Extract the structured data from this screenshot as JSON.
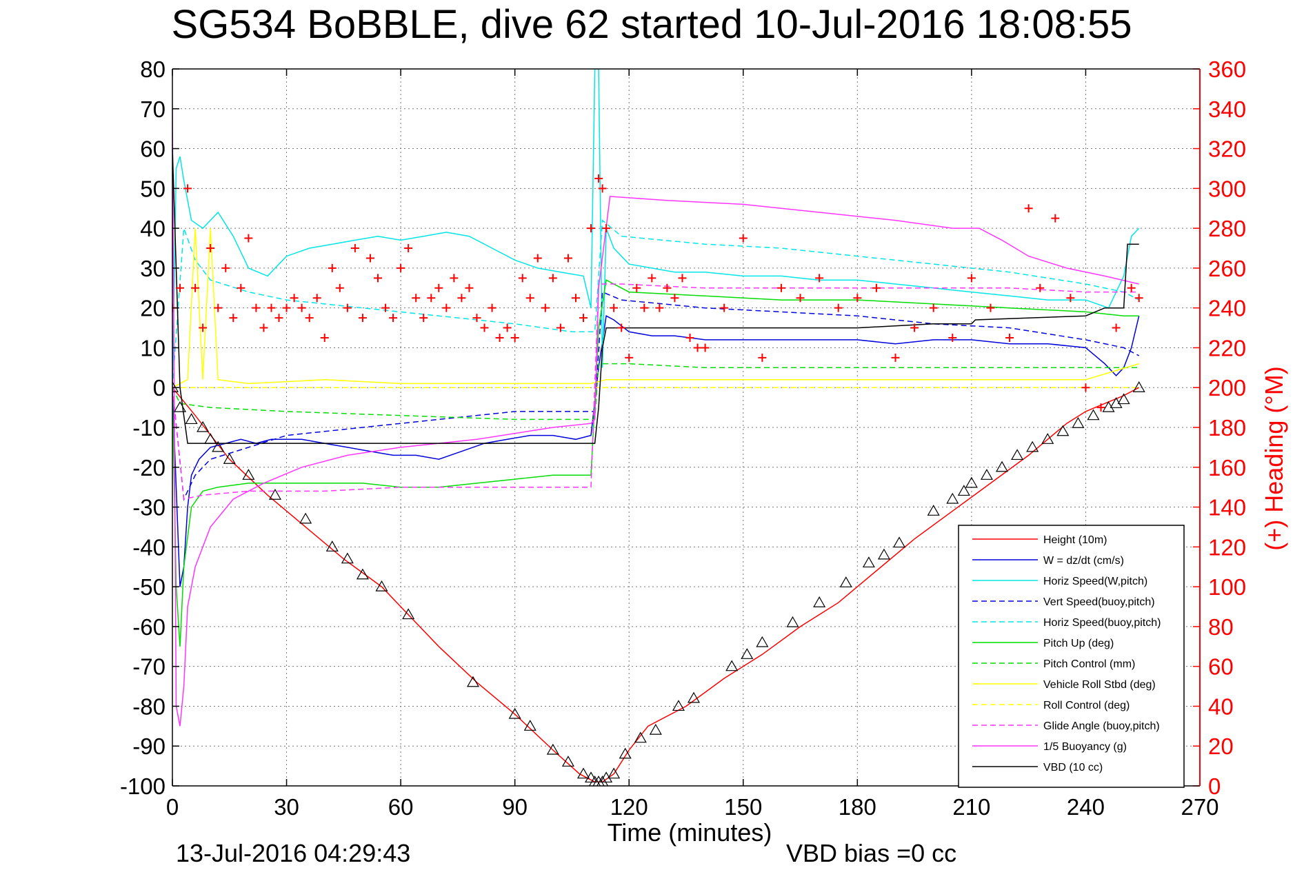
{
  "chart_data": {
    "type": "line",
    "title": "SG534 BoBBLE, dive 62 started 10-Jul-2016 18:08:55",
    "xlabel": "Time (minutes)",
    "ylabel_right": "(+) Heading (°M)",
    "footer_date": "13-Jul-2016 04:29:43",
    "footer_vbd": "VBD bias =0 cc",
    "xlim": [
      0,
      270
    ],
    "ylim": [
      -100,
      80
    ],
    "ylim_right": [
      0,
      360
    ],
    "x_ticks": [
      "0",
      "30",
      "60",
      "90",
      "120",
      "150",
      "180",
      "210",
      "240",
      "270"
    ],
    "y_ticks": [
      "80",
      "70",
      "60",
      "50",
      "40",
      "30",
      "20",
      "10",
      "0",
      "-10",
      "-20",
      "-30",
      "-40",
      "-50",
      "-60",
      "-70",
      "-80",
      "-90",
      "-100"
    ],
    "y_ticks_right": [
      "360",
      "340",
      "320",
      "300",
      "280",
      "260",
      "240",
      "220",
      "200",
      "180",
      "160",
      "140",
      "120",
      "100",
      "80",
      "60",
      "40",
      "20",
      "0"
    ],
    "grid": true,
    "legend_position": "bottom-right",
    "series": [
      {
        "name": "Height (10m)",
        "color": "#ff0000",
        "style": "solid",
        "axis": "left",
        "x": [
          0,
          6,
          15,
          25,
          35,
          45,
          55,
          62,
          70,
          80,
          90,
          100,
          107,
          111,
          113,
          116,
          120,
          125,
          135,
          145,
          155,
          165,
          175,
          185,
          195,
          205,
          215,
          225,
          235,
          240,
          245,
          250,
          254
        ],
        "values": [
          0,
          -7,
          -18,
          -27,
          -35,
          -43,
          -50,
          -57,
          -65,
          -74,
          -82,
          -91,
          -97,
          -99,
          -99,
          -97,
          -91,
          -85,
          -80,
          -73,
          -67,
          -60,
          -54,
          -46,
          -38,
          -31,
          -24,
          -17,
          -9,
          -6,
          -4,
          -2,
          0
        ]
      },
      {
        "name": "W = dz/dt (cm/s)",
        "color": "#0000dd",
        "style": "solid",
        "axis": "left",
        "x": [
          0,
          1,
          2,
          3,
          4,
          5,
          7,
          10,
          14,
          18,
          22,
          26,
          30,
          34,
          40,
          46,
          52,
          58,
          64,
          70,
          76,
          82,
          88,
          94,
          100,
          106,
          110,
          112,
          114,
          116,
          120,
          126,
          132,
          140,
          150,
          160,
          170,
          180,
          190,
          200,
          210,
          220,
          230,
          240,
          245,
          248,
          250,
          252,
          254
        ],
        "values": [
          0,
          -25,
          -50,
          -45,
          -30,
          -22,
          -18,
          -15,
          -14,
          -13,
          -14,
          -13,
          -13,
          -13,
          -14,
          -15,
          -16,
          -17,
          -17,
          -18,
          -16,
          -14,
          -13,
          -12,
          -12,
          -13,
          -12,
          5,
          18,
          17,
          14,
          13,
          13,
          12,
          12,
          12,
          12,
          12,
          11,
          12,
          12,
          11,
          11,
          10,
          6,
          3,
          5,
          10,
          18
        ]
      },
      {
        "name": "Horiz Speed(W,pitch)",
        "color": "#00e5e5",
        "style": "solid",
        "axis": "left",
        "x": [
          0,
          1,
          2,
          3,
          5,
          8,
          12,
          16,
          20,
          25,
          30,
          36,
          42,
          48,
          54,
          60,
          66,
          72,
          78,
          84,
          90,
          96,
          102,
          108,
          110,
          111,
          112,
          113,
          114,
          116,
          120,
          126,
          132,
          140,
          150,
          160,
          170,
          180,
          190,
          200,
          210,
          220,
          230,
          240,
          246,
          250,
          252,
          254
        ],
        "values": [
          0,
          55,
          58,
          52,
          42,
          40,
          44,
          38,
          30,
          28,
          33,
          35,
          36,
          37,
          38,
          37,
          38,
          39,
          38,
          35,
          32,
          30,
          29,
          28,
          20,
          80,
          80,
          5,
          40,
          35,
          31,
          30,
          29,
          29,
          28,
          28,
          27,
          27,
          26,
          25,
          24,
          23,
          22,
          22,
          20,
          28,
          38,
          40
        ]
      },
      {
        "name": "Vert Speed(buoy,pitch)",
        "color": "#0000dd",
        "style": "dashed",
        "axis": "left",
        "x": [
          0,
          3,
          6,
          10,
          20,
          30,
          50,
          70,
          90,
          105,
          111,
          113,
          118,
          140,
          160,
          180,
          200,
          220,
          240,
          250,
          254
        ],
        "values": [
          0,
          -28,
          -22,
          -18,
          -15,
          -12,
          -10,
          -8,
          -6,
          -6,
          -6,
          24,
          22,
          20,
          19,
          18,
          16,
          15,
          12,
          10,
          8
        ]
      },
      {
        "name": "Horiz Speed(buoy,pitch)",
        "color": "#00e5e5",
        "style": "dashed",
        "axis": "left",
        "x": [
          0,
          3,
          6,
          10,
          20,
          30,
          50,
          70,
          90,
          105,
          111,
          113,
          118,
          140,
          160,
          180,
          200,
          220,
          240,
          250,
          254
        ],
        "values": [
          0,
          40,
          32,
          27,
          24,
          22,
          20,
          18,
          16,
          14,
          14,
          42,
          38,
          36,
          35,
          33,
          31,
          29,
          26,
          24,
          22
        ]
      },
      {
        "name": "Pitch Up (deg)",
        "color": "#00dd00",
        "style": "solid",
        "axis": "left",
        "x": [
          0,
          1,
          2,
          3,
          5,
          8,
          12,
          20,
          30,
          40,
          50,
          60,
          70,
          80,
          90,
          100,
          110,
          112,
          114,
          120,
          140,
          160,
          180,
          200,
          220,
          240,
          250,
          254
        ],
        "values": [
          0,
          -50,
          -65,
          -45,
          -30,
          -26,
          -25,
          -24,
          -24,
          -24,
          -24,
          -25,
          -25,
          -24,
          -23,
          -22,
          -22,
          15,
          27,
          24,
          23,
          22,
          22,
          21,
          20,
          19,
          18,
          18
        ]
      },
      {
        "name": "Pitch Control (mm)",
        "color": "#00dd00",
        "style": "dashed",
        "axis": "left",
        "x": [
          0,
          2,
          10,
          30,
          60,
          90,
          110,
          111,
          112,
          120,
          140,
          160,
          180,
          200,
          220,
          240,
          250,
          254
        ],
        "values": [
          0,
          -4,
          -5,
          -6,
          -7,
          -8,
          -8,
          -8,
          6,
          6,
          5,
          5,
          5,
          5,
          5,
          5,
          5,
          5
        ]
      },
      {
        "name": "Vehicle Roll Stbd (deg)",
        "color": "#ffff00",
        "style": "solid",
        "axis": "left",
        "x": [
          0,
          4,
          6,
          8,
          10,
          12,
          20,
          40,
          60,
          80,
          100,
          110,
          114,
          120,
          140,
          160,
          180,
          200,
          220,
          240,
          254
        ],
        "values": [
          0,
          2,
          40,
          2,
          40,
          2,
          1,
          2,
          1,
          1,
          1,
          1,
          2,
          2,
          2,
          2,
          2,
          2,
          2,
          2,
          6
        ]
      },
      {
        "name": "Roll Control (deg)",
        "color": "#ffff00",
        "style": "dashed",
        "axis": "left",
        "x": [
          0,
          10,
          20,
          40,
          60,
          80,
          100,
          110,
          120,
          140,
          160,
          180,
          200,
          220,
          240,
          254
        ],
        "values": [
          0,
          0,
          0,
          0,
          0,
          0,
          0,
          0,
          0,
          0,
          0,
          0,
          0,
          0,
          0,
          0
        ]
      },
      {
        "name": "Glide Angle (buoy,pitch)",
        "color": "#ff33ff",
        "style": "dashed",
        "axis": "left",
        "x": [
          0,
          3,
          8,
          20,
          40,
          60,
          80,
          100,
          110,
          112,
          118,
          140,
          160,
          180,
          200,
          220,
          240,
          250,
          254
        ],
        "values": [
          0,
          -28,
          -27,
          -26,
          -26,
          -25,
          -25,
          -25,
          -25,
          26,
          26,
          25,
          25,
          25,
          25,
          25,
          24,
          24,
          24
        ]
      },
      {
        "name": "1/5 Buoyancy (g)",
        "color": "#ff33ff",
        "style": "solid",
        "axis": "left",
        "x": [
          0,
          1,
          2,
          3,
          4,
          6,
          10,
          16,
          24,
          34,
          46,
          60,
          80,
          100,
          110,
          111,
          112,
          115,
          130,
          150,
          170,
          190,
          205,
          212,
          218,
          225,
          235,
          245,
          254
        ],
        "values": [
          70,
          -80,
          -85,
          -75,
          -55,
          -45,
          -35,
          -28,
          -24,
          -20,
          -17,
          -15,
          -13,
          -10,
          -9,
          -8,
          25,
          48,
          47,
          46,
          44,
          42,
          40,
          40,
          37,
          33,
          30,
          28,
          26
        ]
      },
      {
        "name": "VBD (10 cc)",
        "color": "#000000",
        "style": "solid",
        "axis": "left",
        "x": [
          0,
          2,
          4,
          60,
          90,
          110,
          111,
          112,
          113,
          114,
          140,
          160,
          180,
          200,
          210,
          211,
          240,
          245,
          250,
          251,
          254
        ],
        "values": [
          60,
          0,
          -14,
          -14,
          -14,
          -14,
          -14,
          -5,
          10,
          15,
          15,
          15,
          15,
          16,
          16,
          17,
          18,
          20,
          20,
          36,
          36
        ]
      },
      {
        "name": "Heading",
        "color": "#ff0000",
        "style": "markers",
        "marker": "+",
        "axis": "right",
        "x": [
          0,
          2,
          4,
          6,
          8,
          10,
          12,
          14,
          16,
          18,
          20,
          22,
          24,
          26,
          28,
          30,
          32,
          34,
          36,
          38,
          40,
          42,
          44,
          46,
          48,
          50,
          52,
          54,
          56,
          58,
          60,
          62,
          64,
          66,
          68,
          70,
          72,
          74,
          76,
          78,
          80,
          82,
          84,
          86,
          88,
          90,
          92,
          94,
          96,
          98,
          100,
          102,
          104,
          106,
          108,
          110,
          112,
          113,
          114,
          116,
          118,
          120,
          122,
          124,
          126,
          128,
          130,
          132,
          134,
          136,
          138,
          140,
          145,
          150,
          155,
          160,
          165,
          170,
          175,
          180,
          185,
          190,
          195,
          200,
          205,
          210,
          215,
          220,
          225,
          228,
          232,
          236,
          240,
          244,
          248,
          252,
          254
        ],
        "values": [
          240,
          250,
          300,
          250,
          230,
          270,
          240,
          260,
          235,
          250,
          275,
          240,
          230,
          240,
          235,
          240,
          245,
          240,
          235,
          245,
          225,
          260,
          250,
          240,
          270,
          235,
          265,
          255,
          240,
          235,
          260,
          270,
          245,
          235,
          245,
          250,
          240,
          255,
          245,
          250,
          235,
          230,
          240,
          225,
          230,
          225,
          255,
          245,
          265,
          240,
          255,
          230,
          265,
          245,
          235,
          280,
          305,
          300,
          280,
          240,
          230,
          215,
          250,
          240,
          255,
          240,
          250,
          245,
          255,
          225,
          220,
          220,
          240,
          275,
          215,
          250,
          245,
          255,
          240,
          245,
          250,
          215,
          230,
          240,
          225,
          255,
          240,
          225,
          290,
          250,
          285,
          245,
          200,
          190,
          230,
          250,
          245
        ]
      }
    ],
    "triangle_markers": {
      "x": [
        0,
        2,
        5,
        8,
        10,
        12,
        15,
        20,
        27,
        35,
        42,
        46,
        50,
        55,
        62,
        79,
        90,
        94,
        100,
        104,
        108,
        110,
        111,
        112,
        113,
        114,
        116,
        119,
        123,
        127,
        133,
        137,
        147,
        151,
        155,
        163,
        170,
        177,
        183,
        187,
        191,
        200,
        205,
        208,
        210,
        214,
        218,
        222,
        226,
        230,
        234,
        238,
        242,
        246,
        248,
        250,
        254
      ],
      "values": [
        0,
        -5,
        -8,
        -10,
        -13,
        -15,
        -18,
        -22,
        -27,
        -33,
        -40,
        -43,
        -47,
        -50,
        -57,
        -74,
        -82,
        -85,
        -91,
        -94,
        -97,
        -98,
        -99,
        -99,
        -99,
        -98,
        -97,
        -92,
        -88,
        -86,
        -80,
        -78,
        -70,
        -67,
        -64,
        -59,
        -54,
        -49,
        -44,
        -42,
        -39,
        -31,
        -28,
        -26,
        -24,
        -22,
        -20,
        -17,
        -15,
        -13,
        -11,
        -9,
        -7,
        -5,
        -4,
        -3,
        0
      ]
    }
  }
}
